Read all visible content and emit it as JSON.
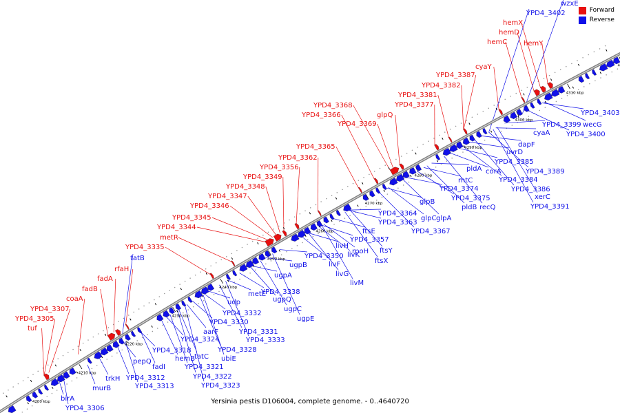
{
  "caption": "Yersinia pestis D106004, complete genome. - 0..4640720",
  "legend": [
    {
      "label": "Forward",
      "color": "#e81010"
    },
    {
      "label": "Reverse",
      "color": "#1010e8"
    }
  ],
  "colors": {
    "forward": "#e81010",
    "reverse": "#1010e8",
    "backbone": "#808080"
  },
  "scale_ticks": [
    "4200 kbp",
    "4210 kbp",
    "4220 kbp",
    "4230 kbp",
    "4240 kbp",
    "4250 kbp",
    "4260 kbp",
    "4270 kbp",
    "4280 kbp",
    "4290 kbp",
    "4300 kbp",
    "4310 kbp",
    "4320 kbp"
  ],
  "forward_labels": [
    "tuf",
    "YPD4_3305",
    "YPD4_3307",
    "coaA",
    "fadB",
    "fadA",
    "rfaH",
    "YPD4_3335",
    "metR",
    "YPD4_3344",
    "YPD4_3345",
    "YPD4_3346",
    "YPD4_3347",
    "YPD4_3348",
    "YPD4_3349",
    "YPD4_3356",
    "YPD4_3362",
    "YPD4_3365",
    "YPD4_3366",
    "YPD4_3368",
    "YPD4_3369",
    "glpQ",
    "YPD4_3377",
    "YPD4_3381",
    "YPD4_3382",
    "YPD4_3387",
    "cyaY",
    "hemC",
    "hemD",
    "hemX",
    "hemY"
  ],
  "reverse_labels": [
    "YPD4_3306",
    "birA",
    "murB",
    "trkH",
    "YPD4_3312",
    "YPD4_3313",
    "pepQ",
    "fadI",
    "YPD4_3318",
    "hemB",
    "YPD4_3321",
    "YPD4_3322",
    "YPD4_3323",
    "tatC",
    "aarF",
    "YPD4_3324",
    "ubiE",
    "YPD4_3328",
    "YPD4_3330",
    "YPD4_3331",
    "YPD4_3332",
    "YPD4_3333",
    "udp",
    "tatB",
    "metE",
    "YPD4_3338",
    "ugpQ",
    "ugpC",
    "ugpE",
    "ugpA",
    "ugpB",
    "YPD4_3350",
    "livH",
    "livF",
    "livG",
    "livM",
    "livK",
    "rpoH",
    "ftsX",
    "ftsY",
    "YPD4_3357",
    "ftsE",
    "YPD4_3363",
    "YPD4_3364",
    "glpC",
    "glpA",
    "YPD4_3367",
    "glpB",
    "rhtC",
    "YPD4_3374",
    "YPD4_3375",
    "pldB",
    "recQ",
    "pldA",
    "corA",
    "uvrD",
    "YPD4_3384",
    "YPD4_3385",
    "YPD4_3386",
    "YPD4_3389",
    "dapF",
    "cyaA",
    "xerC",
    "YPD4_3391",
    "YPD4_3399",
    "wecG",
    "YPD4_3400",
    "YPD4_3403",
    "YPD4_3402",
    "wzxE"
  ]
}
